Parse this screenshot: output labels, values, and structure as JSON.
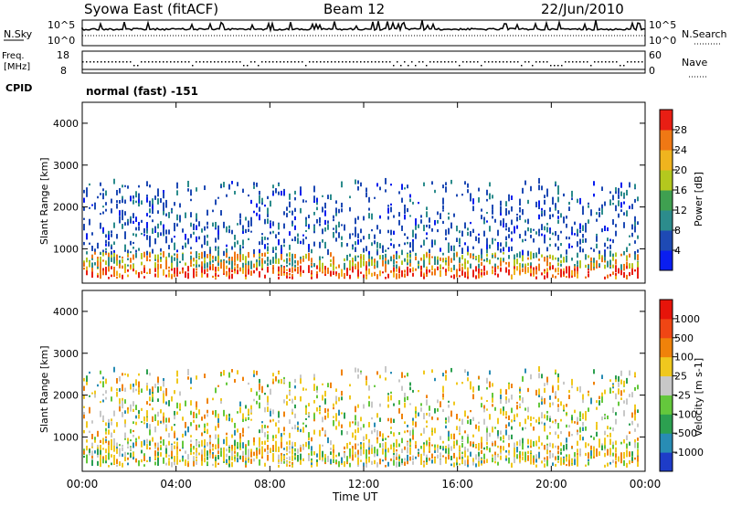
{
  "header": {
    "title": "Syowa East (fitACF)",
    "beam": "Beam 12",
    "date": "22/Jun/2010"
  },
  "strip_panels": {
    "nsky_label": "N.Sky",
    "nsky_ticks": [
      "10^5",
      "10^0"
    ],
    "nsearch_label": "N.Search",
    "nsearch_ticks": [
      "10^5",
      "10^0"
    ],
    "freq_label": "Freq.",
    "freq_unit": "[MHz]",
    "freq_ticks": [
      "18",
      "8"
    ],
    "nave_label": "Nave",
    "nave_ticks": [
      "60",
      "0"
    ],
    "cpid_label": "CPID",
    "cpid_value": "normal (fast) -151"
  },
  "chart_data": [
    {
      "type": "heatmap",
      "name": "power",
      "ylabel": "Slant Range [km]",
      "ylim": [
        180,
        4500
      ],
      "yticks": [
        "4000",
        "3000",
        "2000",
        "1000"
      ],
      "colorbar_label": "Power [dB]",
      "colorbar_ticks": [
        "28",
        "24",
        "20",
        "16",
        "12",
        "8",
        "4"
      ],
      "colors": [
        "#0a1ef0",
        "#1e4ab4",
        "#2c8c8c",
        "#3fa050",
        "#b4c81e",
        "#f0b41e",
        "#f07814",
        "#e81e14"
      ]
    },
    {
      "type": "heatmap",
      "name": "velocity",
      "ylabel": "Slant Range [km]",
      "ylim": [
        180,
        4500
      ],
      "yticks": [
        "4000",
        "3000",
        "2000",
        "1000"
      ],
      "colorbar_label": "Velocity [m s-1]",
      "colorbar_ticks": [
        "1000",
        "500",
        "100",
        "25",
        "-25",
        "-100",
        "-500",
        "-1000"
      ],
      "colors": [
        "#1e3cc8",
        "#288cb4",
        "#2ca050",
        "#64c83c",
        "#c8c8c8",
        "#f0c81e",
        "#f0820a",
        "#f04614",
        "#e6140a"
      ],
      "xticks": [
        "00:00",
        "04:00",
        "08:00",
        "12:00",
        "16:00",
        "20:00",
        "00:00"
      ],
      "xlabel": "Time UT"
    }
  ]
}
